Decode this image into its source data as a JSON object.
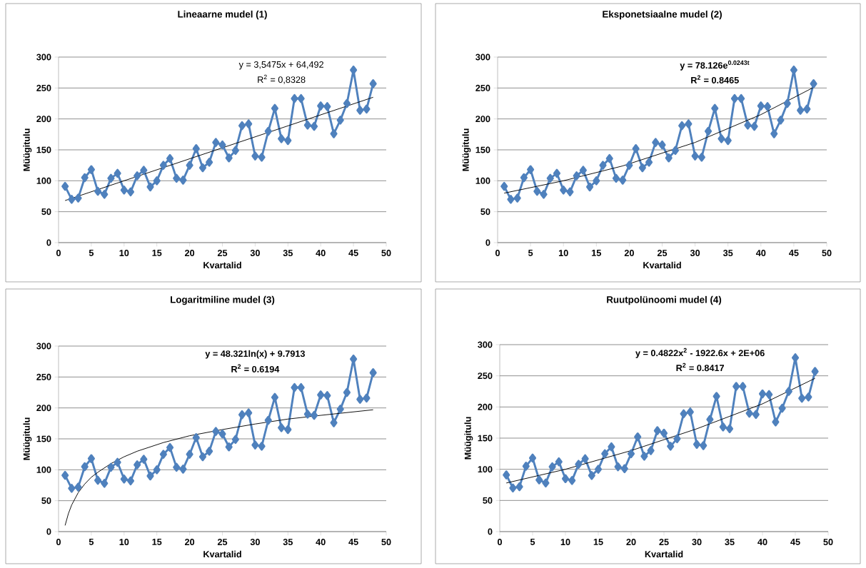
{
  "chart_data": [
    {
      "type": "line",
      "title": "Lineaarne mudel (1)",
      "xlabel": "Kvartalid",
      "ylabel": "Müügitulu",
      "xlim": [
        0,
        50
      ],
      "ylim": [
        0,
        300
      ],
      "xticks": [
        0,
        5,
        10,
        15,
        20,
        25,
        30,
        35,
        40,
        45,
        50
      ],
      "yticks": [
        0,
        50,
        100,
        150,
        200,
        250,
        300
      ],
      "grid": "y",
      "marker": "diamond",
      "line_style": "solid",
      "x": [
        1,
        2,
        3,
        4,
        5,
        6,
        7,
        8,
        9,
        10,
        11,
        12,
        13,
        14,
        15,
        16,
        17,
        18,
        19,
        20,
        21,
        22,
        23,
        24,
        25,
        26,
        27,
        28,
        29,
        30,
        31,
        32,
        33,
        34,
        35,
        36,
        37,
        38,
        39,
        40,
        41,
        42,
        43,
        44,
        45,
        46,
        47,
        48
      ],
      "annotations": [
        "y = 3,5475x + 64,492",
        "R$^{2}$ = 0,8328"
      ],
      "series": [
        {
          "color": "#4f81bd",
          "values": [
            91,
            70,
            72,
            105,
            118,
            83,
            78,
            104,
            112,
            85,
            82,
            108,
            117,
            90,
            100,
            125,
            136,
            104,
            101,
            125,
            152,
            121,
            130,
            162,
            158,
            137,
            149,
            189,
            192,
            140,
            138,
            180,
            217,
            168,
            165,
            233,
            233,
            190,
            188,
            221,
            220,
            176,
            198,
            225,
            279,
            214,
            216,
            257
          ]
        },
        {
          "type": "line",
          "color": "#000000",
          "marker": "none",
          "x": [
            1,
            48
          ],
          "values": [
            68,
            235
          ]
        }
      ]
    },
    {
      "type": "line",
      "title": "Eksponetsiaalne mudel (2)",
      "xlabel": "Kvartalid",
      "ylabel": "Müügitulu",
      "xlim": [
        0,
        50
      ],
      "ylim": [
        0,
        300
      ],
      "xticks": [
        0,
        5,
        10,
        15,
        20,
        25,
        30,
        35,
        40,
        45,
        50
      ],
      "yticks": [
        0,
        50,
        100,
        150,
        200,
        250,
        300
      ],
      "grid": "y",
      "marker": "diamond",
      "line_style": "solid",
      "x": [
        1,
        2,
        3,
        4,
        5,
        6,
        7,
        8,
        9,
        10,
        11,
        12,
        13,
        14,
        15,
        16,
        17,
        18,
        19,
        20,
        21,
        22,
        23,
        24,
        25,
        26,
        27,
        28,
        29,
        30,
        31,
        32,
        33,
        34,
        35,
        36,
        37,
        38,
        39,
        40,
        41,
        42,
        43,
        44,
        45,
        46,
        47,
        48
      ],
      "annotations": [
        "y = 78.126e$^{0.0243t}$",
        "R$^{2}$ = 0.8465"
      ],
      "series": [
        {
          "color": "#4f81bd",
          "values": [
            91,
            70,
            72,
            105,
            118,
            83,
            78,
            104,
            112,
            85,
            82,
            108,
            117,
            90,
            100,
            125,
            136,
            104,
            101,
            125,
            152,
            121,
            130,
            162,
            158,
            137,
            149,
            189,
            192,
            140,
            138,
            180,
            217,
            168,
            165,
            233,
            233,
            190,
            188,
            221,
            220,
            176,
            198,
            225,
            279,
            214,
            216,
            257
          ]
        },
        {
          "type": "line",
          "color": "#000000",
          "marker": "none",
          "x": [
            1,
            10,
            19,
            30,
            40,
            48
          ],
          "values": [
            80,
            100,
            124,
            162,
            207,
            251
          ]
        }
      ]
    },
    {
      "type": "line",
      "title": "Logaritmiline mudel (3)",
      "xlabel": "Kvartalid",
      "ylabel": "Müügitulu",
      "xlim": [
        0,
        50
      ],
      "ylim": [
        0,
        300
      ],
      "xticks": [
        0,
        5,
        10,
        15,
        20,
        25,
        30,
        35,
        40,
        45,
        50
      ],
      "yticks": [
        0,
        50,
        100,
        150,
        200,
        250,
        300
      ],
      "grid": "y",
      "marker": "diamond",
      "line_style": "solid",
      "x": [
        1,
        2,
        3,
        4,
        5,
        6,
        7,
        8,
        9,
        10,
        11,
        12,
        13,
        14,
        15,
        16,
        17,
        18,
        19,
        20,
        21,
        22,
        23,
        24,
        25,
        26,
        27,
        28,
        29,
        30,
        31,
        32,
        33,
        34,
        35,
        36,
        37,
        38,
        39,
        40,
        41,
        42,
        43,
        44,
        45,
        46,
        47,
        48
      ],
      "annotations": [
        "y = 48.321ln(x) + 9.7913",
        "R$^{2}$ = 0.6194"
      ],
      "series": [
        {
          "color": "#4f81bd",
          "values": [
            91,
            70,
            72,
            105,
            118,
            83,
            78,
            104,
            112,
            85,
            82,
            108,
            117,
            90,
            100,
            125,
            136,
            104,
            101,
            125,
            152,
            121,
            130,
            162,
            158,
            137,
            149,
            189,
            192,
            140,
            138,
            180,
            217,
            168,
            165,
            233,
            233,
            190,
            188,
            221,
            220,
            176,
            198,
            225,
            279,
            214,
            216,
            257
          ]
        },
        {
          "type": "line",
          "color": "#000000",
          "marker": "none",
          "x": [
            1,
            1.5,
            2,
            3,
            4,
            5,
            6,
            8,
            10,
            12,
            16,
            20,
            25,
            30,
            35,
            40,
            48
          ],
          "values": [
            10,
            29,
            43,
            63,
            77,
            88,
            96,
            110,
            121,
            130,
            144,
            155,
            165,
            174,
            182,
            188,
            197
          ]
        }
      ]
    },
    {
      "type": "line",
      "title": "Ruutpolünoomi mudel (4)",
      "xlabel": "Kvartalid",
      "ylabel": "Müügitulu",
      "xlim": [
        0,
        50
      ],
      "ylim": [
        0,
        300
      ],
      "xticks": [
        0,
        5,
        10,
        15,
        20,
        25,
        30,
        35,
        40,
        45,
        50
      ],
      "yticks": [
        0,
        50,
        100,
        150,
        200,
        250,
        300
      ],
      "grid": "y",
      "marker": "diamond",
      "line_style": "solid",
      "x": [
        1,
        2,
        3,
        4,
        5,
        6,
        7,
        8,
        9,
        10,
        11,
        12,
        13,
        14,
        15,
        16,
        17,
        18,
        19,
        20,
        21,
        22,
        23,
        24,
        25,
        26,
        27,
        28,
        29,
        30,
        31,
        32,
        33,
        34,
        35,
        36,
        37,
        38,
        39,
        40,
        41,
        42,
        43,
        44,
        45,
        46,
        47,
        48
      ],
      "annotations": [
        "y = 0.4822x$^{2}$ - 1922.6x + 2E+06",
        "R$^{2}$ = 0.8417"
      ],
      "series": [
        {
          "color": "#4f81bd",
          "values": [
            91,
            70,
            72,
            105,
            118,
            83,
            78,
            104,
            112,
            85,
            82,
            108,
            117,
            90,
            100,
            125,
            136,
            104,
            101,
            125,
            152,
            121,
            130,
            162,
            158,
            137,
            149,
            189,
            192,
            140,
            138,
            180,
            217,
            168,
            165,
            233,
            233,
            190,
            188,
            221,
            220,
            176,
            198,
            225,
            279,
            214,
            216,
            257
          ]
        },
        {
          "type": "line",
          "color": "#000000",
          "marker": "none",
          "x": [
            1,
            10,
            20,
            30,
            40,
            48
          ],
          "values": [
            78,
            100,
            130,
            165,
            205,
            246
          ]
        }
      ]
    }
  ]
}
